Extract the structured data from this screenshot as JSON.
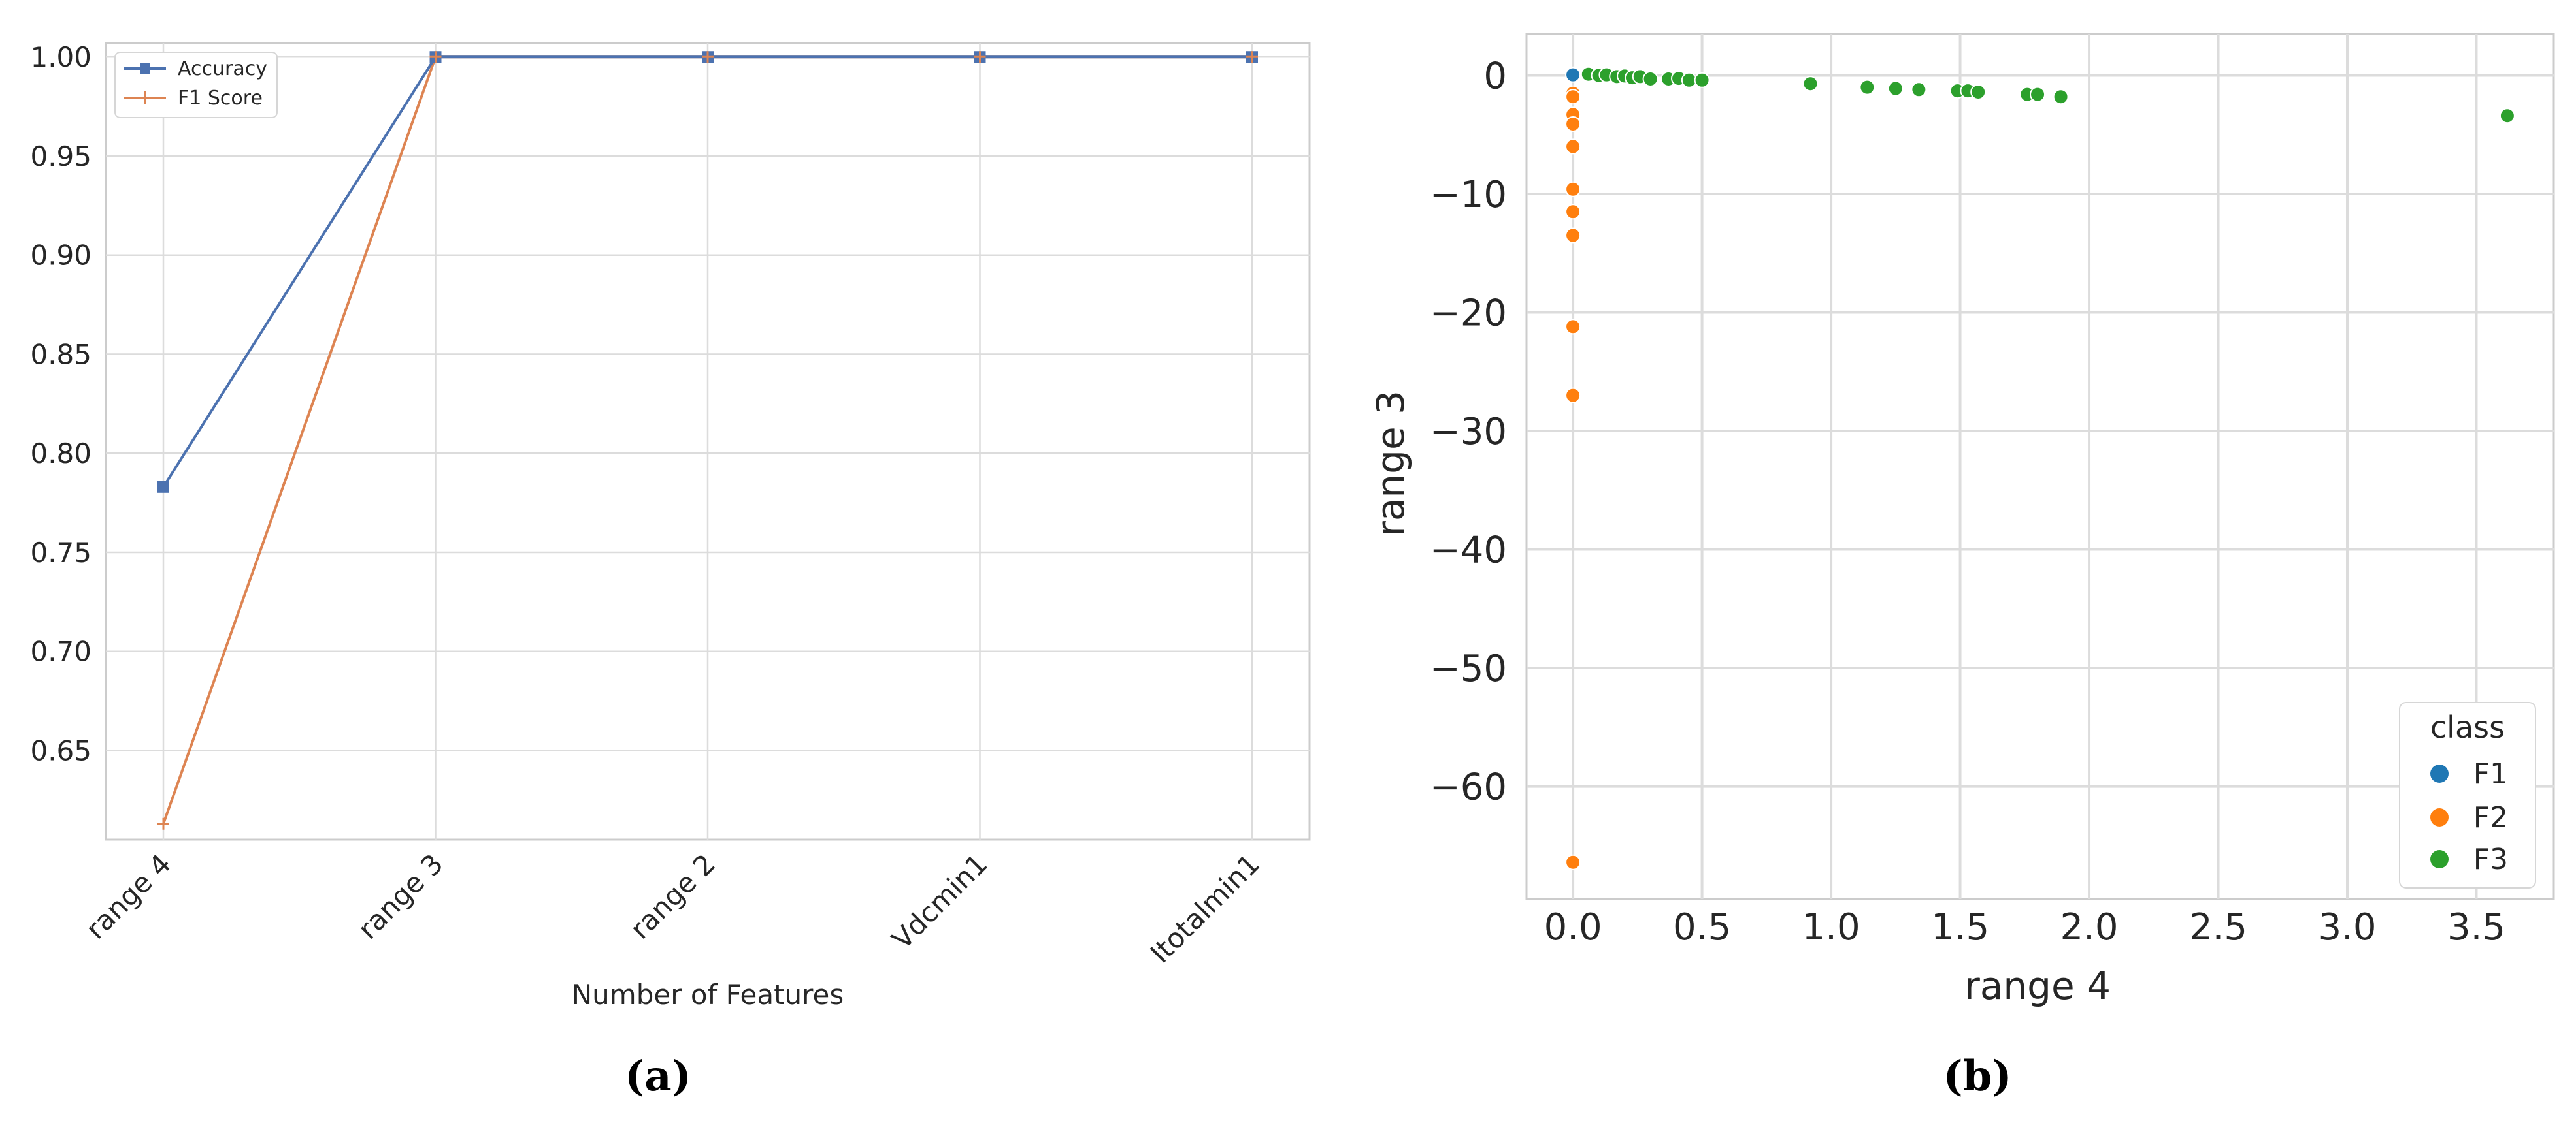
{
  "panel_a": {
    "caption": "(a)",
    "chart_data": {
      "type": "line",
      "title": "",
      "xlabel": "Number of Features",
      "ylabel": "",
      "categories": [
        "range 4",
        "range 3",
        "range 2",
        "Vdcmin1",
        "Itotalmin1"
      ],
      "yticks": [
        "0.65",
        "0.70",
        "0.75",
        "0.80",
        "0.85",
        "0.90",
        "0.95",
        "1.00"
      ],
      "ylim": [
        0.605,
        1.007
      ],
      "grid": true,
      "legend_placement": "top-left",
      "series": [
        {
          "name": "Accuracy",
          "marker": "square",
          "color": "#4c72b0",
          "values": [
            0.783,
            1.0,
            1.0,
            1.0,
            1.0
          ]
        },
        {
          "name": "F1 Score",
          "marker": "plus",
          "color": "#dd8452",
          "values": [
            0.613,
            1.0,
            1.0,
            1.0,
            1.0
          ]
        }
      ]
    }
  },
  "panel_b": {
    "caption": "(b)",
    "chart_data": {
      "type": "scatter",
      "title": "",
      "xlabel": "range 4",
      "ylabel": "range 3",
      "xticks": [
        "0.0",
        "0.5",
        "1.0",
        "1.5",
        "2.0",
        "2.5",
        "3.0",
        "3.5"
      ],
      "yticks": [
        "0",
        "−10",
        "−20",
        "−30",
        "−40",
        "−50",
        "−60"
      ],
      "xlim": [
        -0.18,
        3.8
      ],
      "ylim": [
        -69.5,
        3.5
      ],
      "grid": true,
      "legend_title": "class",
      "legend_placement": "bottom-right",
      "series": [
        {
          "name": "F1",
          "color": "#1f77b4",
          "points": [
            [
              0.0,
              0.1
            ],
            [
              0.0,
              0.05
            ]
          ]
        },
        {
          "name": "F2",
          "color": "#ff7f0e",
          "points": [
            [
              0.0,
              -1.5
            ],
            [
              0.0,
              -1.8
            ],
            [
              0.0,
              -3.3
            ],
            [
              0.0,
              -4.1
            ],
            [
              0.0,
              -6.0
            ],
            [
              0.0,
              -9.6
            ],
            [
              0.0,
              -11.5
            ],
            [
              0.0,
              -13.5
            ],
            [
              0.0,
              -21.2
            ],
            [
              0.0,
              -27.0
            ],
            [
              0.0,
              -66.4
            ]
          ]
        },
        {
          "name": "F3",
          "color": "#2ca02c",
          "points": [
            [
              0.06,
              0.1
            ],
            [
              0.1,
              0.0
            ],
            [
              0.13,
              0.05
            ],
            [
              0.17,
              -0.1
            ],
            [
              0.2,
              -0.05
            ],
            [
              0.23,
              -0.2
            ],
            [
              0.26,
              -0.1
            ],
            [
              0.3,
              -0.3
            ],
            [
              0.37,
              -0.3
            ],
            [
              0.41,
              -0.25
            ],
            [
              0.45,
              -0.4
            ],
            [
              0.5,
              -0.4
            ],
            [
              0.92,
              -0.7
            ],
            [
              1.14,
              -1.0
            ],
            [
              1.25,
              -1.1
            ],
            [
              1.34,
              -1.2
            ],
            [
              1.49,
              -1.3
            ],
            [
              1.53,
              -1.3
            ],
            [
              1.57,
              -1.4
            ],
            [
              1.76,
              -1.6
            ],
            [
              1.8,
              -1.6
            ],
            [
              1.89,
              -1.8
            ],
            [
              3.62,
              -3.4
            ]
          ]
        }
      ]
    }
  }
}
